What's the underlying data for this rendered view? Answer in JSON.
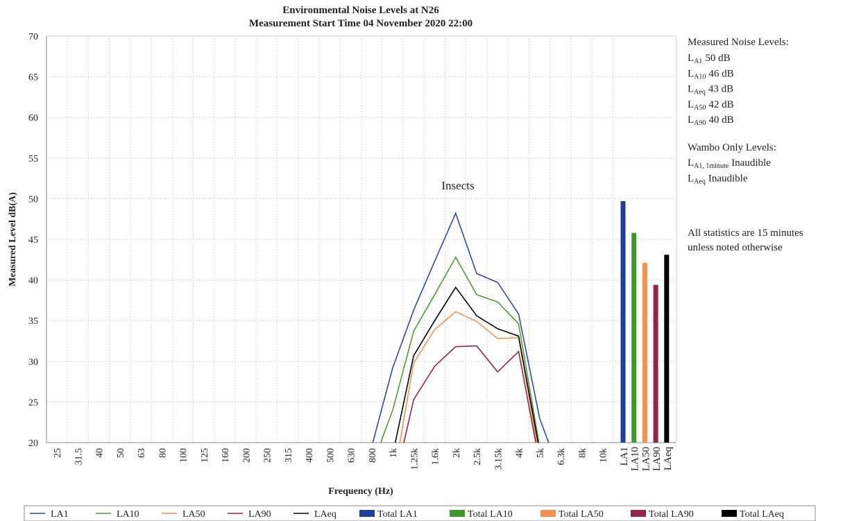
{
  "chart_data": {
    "type": "line",
    "title": [
      "Environmental Noise Levels at N26",
      "Measurement Start Time 04 November 2020 22:00"
    ],
    "x_label": "Frequency (Hz)",
    "y_label": "Measured Level dB(A)",
    "categories": [
      "25",
      "31.5",
      "40",
      "50",
      "63",
      "80",
      "100",
      "125",
      "160",
      "200",
      "250",
      "315",
      "400",
      "500",
      "630",
      "800",
      "1k",
      "1.25k",
      "1.6k",
      "2k",
      "2.5k",
      "3.15k",
      "4k",
      "5k",
      "6.3k",
      "8k",
      "10k"
    ],
    "series": [
      {
        "name": "LA1",
        "color": "#2e4a9e",
        "values": [
          null,
          null,
          null,
          null,
          null,
          null,
          null,
          null,
          null,
          null,
          null,
          null,
          null,
          null,
          null,
          19.5,
          29.2,
          36.3,
          42.3,
          48.2,
          40.8,
          39.7,
          35.8,
          23,
          16,
          null,
          null
        ]
      },
      {
        "name": "LA10",
        "color": "#4aa02c",
        "values": [
          null,
          null,
          null,
          null,
          null,
          null,
          null,
          null,
          null,
          null,
          null,
          null,
          null,
          null,
          null,
          17,
          24,
          33.7,
          38.2,
          42.8,
          38.2,
          37.3,
          34.6,
          19.5,
          null,
          null,
          null
        ]
      },
      {
        "name": "LA50",
        "color": "#f4924a",
        "values": [
          null,
          null,
          null,
          null,
          null,
          null,
          null,
          null,
          null,
          null,
          null,
          null,
          null,
          null,
          null,
          null,
          15,
          29.8,
          33.9,
          36.1,
          34.9,
          32.8,
          32.9,
          18,
          null,
          null,
          null
        ]
      },
      {
        "name": "LA90",
        "color": "#9b2048",
        "values": [
          null,
          null,
          null,
          null,
          null,
          null,
          null,
          null,
          null,
          null,
          null,
          null,
          null,
          null,
          null,
          null,
          14,
          25.3,
          29.4,
          31.8,
          31.9,
          28.7,
          31.2,
          17.5,
          null,
          null,
          null
        ]
      },
      {
        "name": "LAeq",
        "color": "#000000",
        "values": [
          null,
          null,
          null,
          null,
          null,
          null,
          null,
          null,
          null,
          null,
          null,
          null,
          null,
          null,
          null,
          null,
          18.5,
          30.7,
          35,
          39.1,
          35.6,
          34,
          33.1,
          19,
          null,
          null,
          null
        ]
      }
    ],
    "totals": {
      "type": "bar",
      "categories": [
        "LA1",
        "LA10",
        "LA50",
        "LA90",
        "LAeq"
      ],
      "series": [
        {
          "name": "Total LA1",
          "color": "#1f3f9e",
          "value": 49.7
        },
        {
          "name": "Total LA10",
          "color": "#3c9a2a",
          "value": 45.8
        },
        {
          "name": "Total LA50",
          "color": "#f7914e",
          "value": 42.1
        },
        {
          "name": "Total LA90",
          "color": "#9a1f4a",
          "value": 39.4
        },
        {
          "name": "Total LAeq",
          "color": "#000000",
          "value": 43.1
        }
      ]
    },
    "ylim": [
      20,
      70
    ],
    "yticks": [
      20,
      25,
      30,
      35,
      40,
      45,
      50,
      55,
      60,
      65,
      70
    ],
    "grid": true,
    "legend": "bottom",
    "annotations": [
      "Insects"
    ],
    "side_panel": {
      "heading": "Measured Noise Levels:",
      "items": [
        {
          "symbol": "L",
          "sub": "A1",
          "text": "50 dB"
        },
        {
          "symbol": "L",
          "sub": "A10",
          "text": "46 dB"
        },
        {
          "symbol": "L",
          "sub": "Aeq",
          "text": "43 dB"
        },
        {
          "symbol": "L",
          "sub": "A50",
          "text": "42 dB"
        },
        {
          "symbol": "L",
          "sub": "A90",
          "text": "40 dB"
        }
      ],
      "heading2": "Wambo Only Levels:",
      "items2": [
        {
          "symbol": "L",
          "sub": "A1, 1minute",
          "text": "Inaudible"
        },
        {
          "symbol": "L",
          "sub": "Aeq",
          "text": "Inaudible"
        }
      ],
      "note": [
        "All statistics are 15 minutes",
        "unless noted otherwise"
      ]
    }
  }
}
